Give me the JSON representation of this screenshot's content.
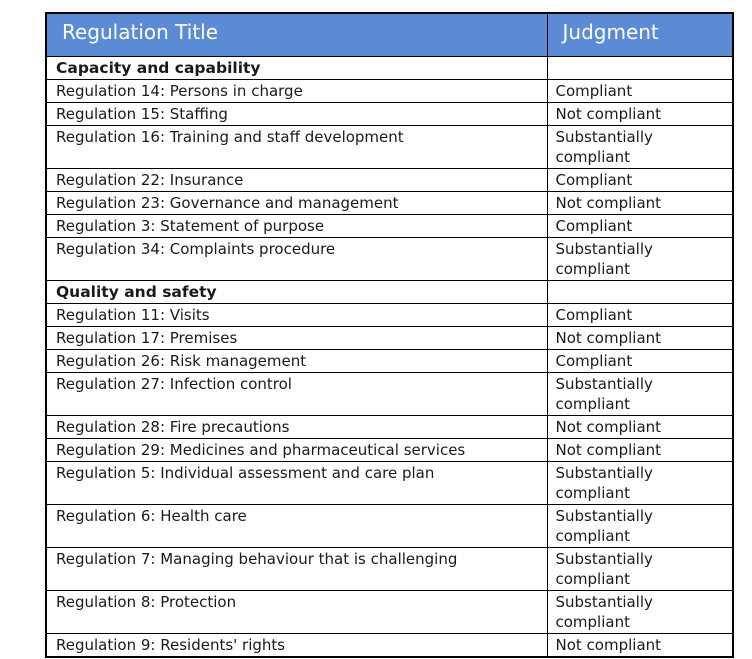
{
  "colors": {
    "header_bg": "#5B8BD5",
    "header_text": "#FFFFFF",
    "border": "#000000",
    "body_text": "#1A1A1A"
  },
  "table": {
    "header": {
      "title_col": "Regulation Title",
      "judgment_col": "Judgment"
    },
    "sections": [
      {
        "name": "Capacity and capability",
        "rows": [
          {
            "title": "Regulation 14: Persons in charge",
            "judgment": "Compliant"
          },
          {
            "title": "Regulation 15: Staffing",
            "judgment": "Not compliant"
          },
          {
            "title": "Regulation 16: Training and staff development",
            "judgment": "Substantially compliant"
          },
          {
            "title": "Regulation 22: Insurance",
            "judgment": "Compliant"
          },
          {
            "title": "Regulation 23: Governance and management",
            "judgment": "Not compliant"
          },
          {
            "title": "Regulation 3: Statement of purpose",
            "judgment": "Compliant"
          },
          {
            "title": "Regulation 34: Complaints procedure",
            "judgment": "Substantially compliant"
          }
        ]
      },
      {
        "name": "Quality and safety",
        "rows": [
          {
            "title": "Regulation 11: Visits",
            "judgment": "Compliant"
          },
          {
            "title": "Regulation 17: Premises",
            "judgment": "Not compliant"
          },
          {
            "title": "Regulation 26: Risk management",
            "judgment": "Compliant"
          },
          {
            "title": "Regulation 27: Infection control",
            "judgment": "Substantially compliant"
          },
          {
            "title": "Regulation 28: Fire precautions",
            "judgment": "Not compliant"
          },
          {
            "title": "Regulation 29: Medicines and pharmaceutical services",
            "judgment": "Not compliant"
          },
          {
            "title": "Regulation 5: Individual assessment and care plan",
            "judgment": "Substantially compliant"
          },
          {
            "title": "Regulation 6: Health care",
            "judgment": "Substantially compliant"
          },
          {
            "title": "Regulation 7: Managing behaviour that is challenging",
            "judgment": "Substantially compliant"
          },
          {
            "title": "Regulation 8: Protection",
            "judgment": "Substantially compliant"
          },
          {
            "title": "Regulation 9: Residents' rights",
            "judgment": "Not compliant"
          }
        ]
      }
    ]
  }
}
